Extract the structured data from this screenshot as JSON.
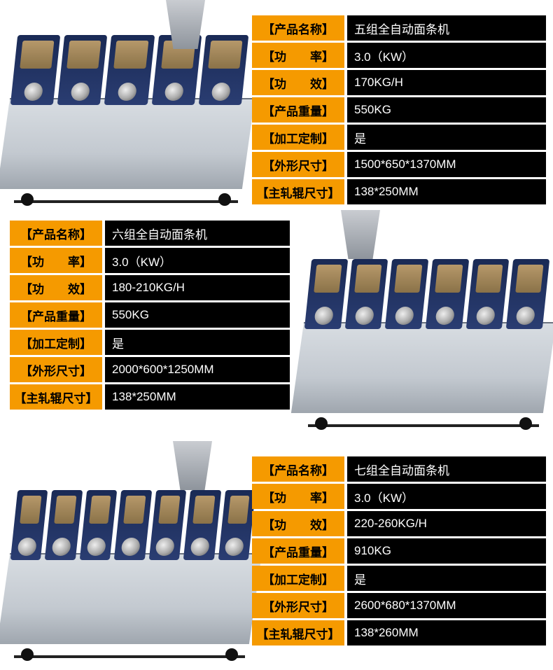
{
  "colors": {
    "label_bg": "#f59a00",
    "value_bg": "#000000",
    "value_fg": "#ffffff",
    "machine_blue": "#1a2a55",
    "machine_metal": "#c3c9d0"
  },
  "labels": {
    "product_name": "【产品名称】",
    "power": "【功　　率】",
    "efficiency": "【功　　效】",
    "weight": "【产品重量】",
    "custom": "【加工定制】",
    "dimensions": "【外形尺寸】",
    "roller": "【主轧辊尺寸】"
  },
  "products": [
    {
      "name": "五组全自动面条机",
      "power": "3.0（KW）",
      "efficiency": "170KG/H",
      "weight": "550KG",
      "custom": "是",
      "dimensions": "1500*650*1370MM",
      "roller": "138*250MM"
    },
    {
      "name": "六组全自动面条机",
      "power": "3.0（KW）",
      "efficiency": "180-210KG/H",
      "weight": "550KG",
      "custom": "是",
      "dimensions": "2000*600*1250MM",
      "roller": "138*250MM"
    },
    {
      "name": "七组全自动面条机",
      "power": "3.0（KW）",
      "efficiency": "220-260KG/H",
      "weight": "910KG",
      "custom": "是",
      "dimensions": "2600*680*1370MM",
      "roller": "138*260MM"
    }
  ]
}
